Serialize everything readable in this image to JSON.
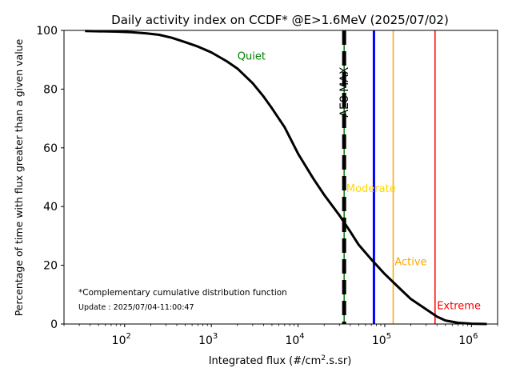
{
  "chart_data": {
    "type": "line",
    "title": "Daily activity index on CCDF* @E>1.6MeV (2025/07/02)",
    "xlabel": "Integrated flux (#/cm².s.sr)",
    "ylabel": "Percentage of time with flux greater than a given value",
    "xscale": "log",
    "xlim": [
      20,
      2000000
    ],
    "ylim": [
      0,
      100
    ],
    "x_ticks": [
      {
        "value": 100,
        "label_base": "10",
        "label_exp": "2"
      },
      {
        "value": 1000,
        "label_base": "10",
        "label_exp": "3"
      },
      {
        "value": 10000,
        "label_base": "10",
        "label_exp": "4"
      },
      {
        "value": 100000,
        "label_base": "10",
        "label_exp": "5"
      },
      {
        "value": 1000000,
        "label_base": "10",
        "label_exp": "6"
      }
    ],
    "y_ticks": [
      0,
      20,
      40,
      60,
      80,
      100
    ],
    "grid": false,
    "series": [
      {
        "color": "#000000",
        "x": [
          35,
          50,
          80,
          120,
          180,
          250,
          350,
          500,
          700,
          1000,
          1500,
          2000,
          3000,
          4000,
          5000,
          7000,
          10000,
          15000,
          20000,
          30000,
          40000,
          50000,
          70000,
          100000,
          150000,
          200000,
          300000,
          400000,
          500000,
          700000,
          1000000,
          1500000
        ],
        "y": [
          99.8,
          99.7,
          99.6,
          99.4,
          99.0,
          98.5,
          97.5,
          96.0,
          94.5,
          92.5,
          89.5,
          87.0,
          82.0,
          77.5,
          73.5,
          67.0,
          58.0,
          49.5,
          44.0,
          37.0,
          31.5,
          27.0,
          22.0,
          17.0,
          12.0,
          8.5,
          5.0,
          2.5,
          1.2,
          0.4,
          0.1,
          0.0
        ]
      }
    ],
    "thresholds": [
      {
        "label": "AE8 MAX",
        "x": 34000,
        "color": "#000000",
        "style": "dashed-black-green",
        "label_rotated": true
      },
      {
        "label": "",
        "x": 75000,
        "color": "#0000ff",
        "style": "solid-thick"
      },
      {
        "label": "Active",
        "x": 125000,
        "color": "#ffa500",
        "style": "solid"
      },
      {
        "label": "Extreme",
        "x": 380000,
        "color": "#ff0000",
        "style": "solid"
      }
    ],
    "annotations": [
      {
        "text": "Quiet",
        "x": 2000,
        "y": 90,
        "color": "#008000"
      },
      {
        "text": "Moderate",
        "x": 36000,
        "y": 45,
        "color": "#ffd700"
      },
      {
        "text": "Active",
        "x": 130000,
        "y": 20,
        "color": "#ffa500"
      },
      {
        "text": "Extreme",
        "x": 400000,
        "y": 5,
        "color": "#ff0000"
      }
    ],
    "footnotes": {
      "definition": "*Complementary cumulative distribution function",
      "update": "Update : 2025/07/04-11:00:47"
    }
  }
}
